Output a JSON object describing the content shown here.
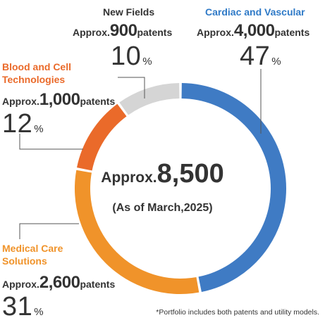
{
  "chart_data": {
    "type": "pie",
    "style": "donut",
    "center": {
      "prefix": "Approx.",
      "total": "8,500",
      "as_of": "(As of March,2025)"
    },
    "segments": [
      {
        "name": "Cardiac and Vascular",
        "count_prefix": "Approx.",
        "count": "4,000",
        "count_suffix": "patents",
        "percent": 47,
        "pct_label": "47",
        "color": "#3f7bc4",
        "name_color": "#2f7ac7"
      },
      {
        "name": "Medical Care Solutions",
        "count_prefix": "Approx.",
        "count": "2,600",
        "count_suffix": "patents",
        "percent": 31,
        "pct_label": "31",
        "color": "#f0932a",
        "name_color": "#f0932a"
      },
      {
        "name": "Blood and Cell Technologies",
        "count_prefix": "Approx.",
        "count": "1,000",
        "count_suffix": "patents",
        "percent": 12,
        "pct_label": "12",
        "color": "#ea6a2a",
        "name_color": "#ea6a2a"
      },
      {
        "name": "New Fields",
        "count_prefix": "Approx.",
        "count": "900",
        "count_suffix": "patents",
        "percent": 10,
        "pct_label": "10",
        "color": "#d5d5d5",
        "name_color": "#333333"
      }
    ],
    "percent_symbol": "%"
  },
  "footnote": "*Portfolio includes both patents and utility models."
}
